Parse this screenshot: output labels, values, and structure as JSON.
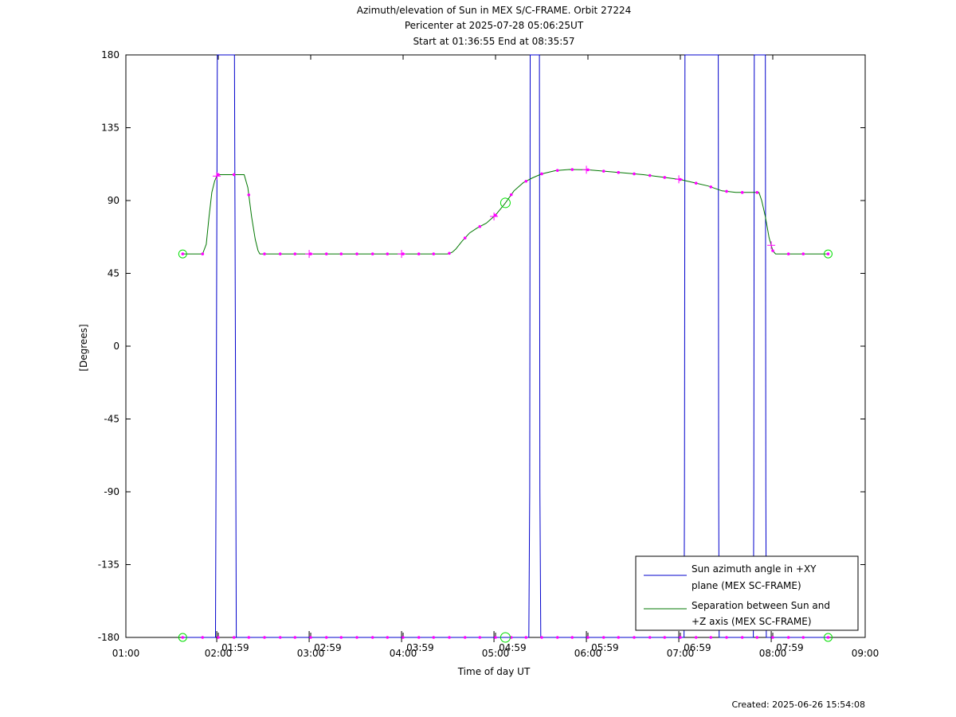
{
  "title_lines": [
    "Azimuth/elevation of Sun in MEX S/C-FRAME.  Orbit 27224",
    "Pericenter at 2025-07-28 05:06:25UT",
    "Start at 01:36:55 End at 08:35:57"
  ],
  "created": "Created: 2025-06-26 15:54:08",
  "colors": {
    "azimuth": "#0000cc",
    "separation": "#007700",
    "markers": "#ff00ff",
    "circles": "#00dd00"
  },
  "chart_data": {
    "type": "line",
    "xlabel": "Time of day UT",
    "ylabel": "[Degrees]",
    "xlim": [
      1.0,
      9.0
    ],
    "ylim": [
      -180,
      180
    ],
    "x_ticks": [
      {
        "v": 1,
        "label": "01:00"
      },
      {
        "v": 2,
        "label": "02:00"
      },
      {
        "v": 3,
        "label": "03:00"
      },
      {
        "v": 4,
        "label": "04:00"
      },
      {
        "v": 5,
        "label": "05:00"
      },
      {
        "v": 6,
        "label": "06:00"
      },
      {
        "v": 7,
        "label": "07:00"
      },
      {
        "v": 8,
        "label": "08:00"
      },
      {
        "v": 9,
        "label": "09:00"
      }
    ],
    "y_ticks": [
      180,
      135,
      90,
      45,
      0,
      -45,
      -90,
      -135,
      -180
    ],
    "hour_markers": [
      {
        "t": 1.9833,
        "label": "01:59"
      },
      {
        "t": 2.9833,
        "label": "02:59"
      },
      {
        "t": 3.9833,
        "label": "03:59"
      },
      {
        "t": 4.9833,
        "label": "04:59"
      },
      {
        "t": 5.9833,
        "label": "05:59"
      },
      {
        "t": 6.9833,
        "label": "06:59"
      },
      {
        "t": 7.9833,
        "label": "07:59"
      }
    ],
    "series": [
      {
        "name": "Sun azimuth angle in +XY plane (MEX SC-FRAME)",
        "legend_lines": [
          "Sun azimuth angle in +XY",
          "plane (MEX SC-FRAME)"
        ],
        "points": [
          [
            1.615,
            -180
          ],
          [
            1.97,
            -180
          ],
          [
            1.98,
            0
          ],
          [
            1.99,
            180
          ],
          [
            2.175,
            180
          ],
          [
            2.185,
            0
          ],
          [
            2.195,
            -180
          ],
          [
            5.36,
            -180
          ],
          [
            5.37,
            -90
          ],
          [
            5.375,
            180
          ],
          [
            5.475,
            180
          ],
          [
            5.48,
            -90
          ],
          [
            5.49,
            -180
          ],
          [
            7.04,
            -180
          ],
          [
            7.045,
            -90
          ],
          [
            7.05,
            180
          ],
          [
            7.41,
            180
          ],
          [
            7.415,
            -90
          ],
          [
            7.42,
            -180
          ],
          [
            7.79,
            -180
          ],
          [
            7.795,
            -90
          ],
          [
            7.8,
            180
          ],
          [
            7.92,
            180
          ],
          [
            7.925,
            -90
          ],
          [
            7.93,
            -180
          ],
          [
            8.599,
            -180
          ]
        ]
      },
      {
        "name": "Separation between Sun and +Z axis (MEX SC-FRAME)",
        "legend_lines": [
          "Separation between Sun and",
          "+Z axis (MEX SC-FRAME)"
        ],
        "points": [
          [
            1.615,
            57
          ],
          [
            1.83,
            57
          ],
          [
            1.87,
            63
          ],
          [
            1.9,
            80
          ],
          [
            1.93,
            95
          ],
          [
            1.96,
            102
          ],
          [
            1.99,
            106
          ],
          [
            2.28,
            106
          ],
          [
            2.32,
            98
          ],
          [
            2.36,
            80
          ],
          [
            2.4,
            66
          ],
          [
            2.43,
            59
          ],
          [
            2.45,
            57
          ],
          [
            4.48,
            57
          ],
          [
            4.53,
            58
          ],
          [
            4.57,
            60
          ],
          [
            4.64,
            65
          ],
          [
            4.72,
            70
          ],
          [
            4.8,
            73
          ],
          [
            4.9,
            76
          ],
          [
            5.0,
            81
          ],
          [
            5.1,
            88
          ],
          [
            5.2,
            96
          ],
          [
            5.3,
            101
          ],
          [
            5.4,
            104
          ],
          [
            5.5,
            106.5
          ],
          [
            5.65,
            108.5
          ],
          [
            5.8,
            109.2
          ],
          [
            6.0,
            109
          ],
          [
            6.2,
            108
          ],
          [
            6.4,
            107
          ],
          [
            6.6,
            106
          ],
          [
            6.8,
            104.5
          ],
          [
            7.0,
            103
          ],
          [
            7.15,
            101
          ],
          [
            7.3,
            99
          ],
          [
            7.45,
            96
          ],
          [
            7.6,
            95
          ],
          [
            7.85,
            95
          ],
          [
            7.88,
            90
          ],
          [
            7.92,
            80
          ],
          [
            7.96,
            67
          ],
          [
            8.0,
            59
          ],
          [
            8.03,
            57
          ],
          [
            8.599,
            57
          ]
        ]
      }
    ],
    "marker_x": [
      1.615,
      1.83,
      2.0,
      2.17,
      2.33,
      2.5,
      2.67,
      2.83,
      3.0,
      3.17,
      3.33,
      3.5,
      3.67,
      3.83,
      4.0,
      4.17,
      4.33,
      4.5,
      4.67,
      4.83,
      5.0,
      5.17,
      5.33,
      5.5,
      5.67,
      5.83,
      6.0,
      6.17,
      6.33,
      6.5,
      6.67,
      6.83,
      7.0,
      7.17,
      7.33,
      7.5,
      7.67,
      7.83,
      8.0,
      8.17,
      8.33,
      8.599
    ],
    "start_marker_x": [
      1.615,
      8.599
    ],
    "pericenter_x": 5.107
  }
}
